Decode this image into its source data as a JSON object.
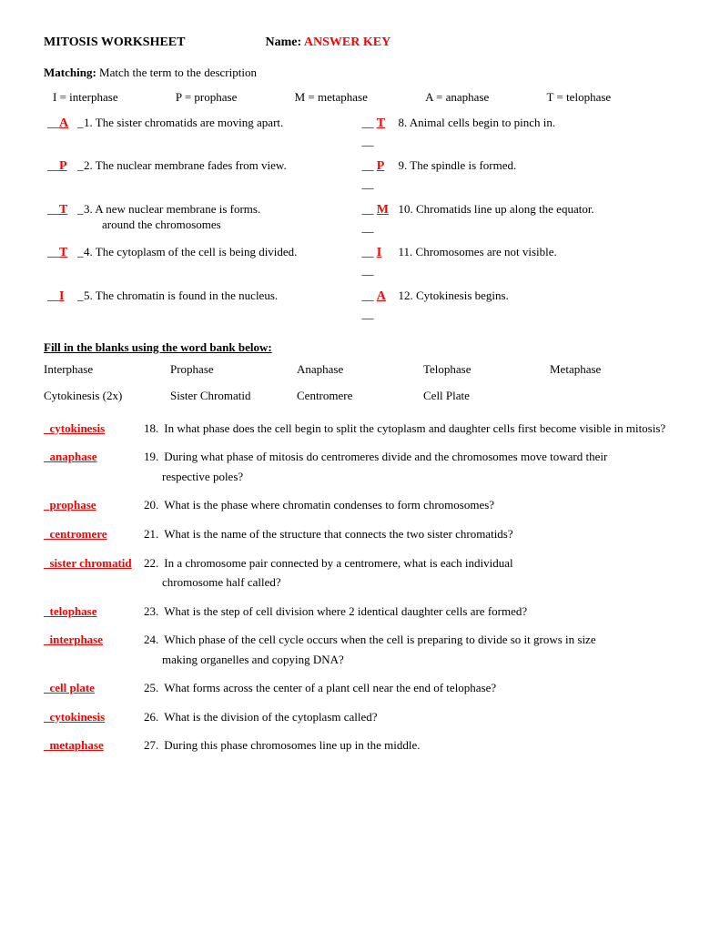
{
  "header": {
    "title": "MITOSIS WORKSHEET",
    "name_label": "Name:",
    "name_value": "ANSWER KEY"
  },
  "matching": {
    "label": "Matching:",
    "desc": "Match the term to the description",
    "legend": [
      "I = interphase",
      "P = prophase",
      "M = metaphase",
      "A = anaphase",
      "T = telophase"
    ],
    "left": [
      {
        "ans": "A",
        "num": "1.",
        "text": "The sister chromatids are moving apart."
      },
      {
        "ans": "P",
        "num": "2.",
        "text": "The nuclear membrane fades from view."
      },
      {
        "ans": "T",
        "num": "3.",
        "text": "A new nuclear membrane is forms.",
        "text2": "around the chromosomes"
      },
      {
        "ans": "T",
        "num": "4.",
        "text": "The cytoplasm of the cell is being divided."
      },
      {
        "ans": "I",
        "num": "5.",
        "text": "The chromatin is found in the nucleus."
      }
    ],
    "right": [
      {
        "ans": "T",
        "num": "8.",
        "text": "Animal cells begin to pinch in."
      },
      {
        "ans": "P",
        "num": "9.",
        "text": "The spindle is formed."
      },
      {
        "ans": "M",
        "num": "10.",
        "text": "Chromatids line up along the equator."
      },
      {
        "ans": "I",
        "num": "11.",
        "text": "Chromosomes are not visible."
      },
      {
        "ans": "A",
        "num": "12.",
        "text": "Cytokinesis begins."
      }
    ]
  },
  "fill": {
    "header": "Fill in the blanks using the word bank below:",
    "wordbank": {
      "row1": [
        "Interphase",
        "Prophase",
        "Anaphase",
        "Telophase",
        "Metaphase"
      ],
      "row2": [
        "Cytokinesis (2x)",
        "Sister Chromatid",
        "Centromere",
        "Cell Plate",
        ""
      ]
    },
    "questions": [
      {
        "ans": "cytokinesis",
        "num": "18.",
        "text": "In what phase does the cell begin to split the cytoplasm and daughter cells first become visible in mitosis?"
      },
      {
        "ans": "anaphase",
        "num": "19.",
        "text": "During what phase of mitosis do centromeres divide and the chromosomes move toward their",
        "cont": "respective poles?"
      },
      {
        "ans": "prophase",
        "num": "20.",
        "text": "What is the phase where chromatin condenses to form chromosomes?"
      },
      {
        "ans": "centromere",
        "num": "21.",
        "text": "What is the name of the structure that connects the two sister chromatids?"
      },
      {
        "ans": "sister chromatid",
        "num": "22.",
        "text": "In a chromosome pair connected by a centromere, what is each individual",
        "cont": "chromosome half called?"
      },
      {
        "ans": "telophase",
        "num": "23.",
        "text": "What is the step of cell division where 2 identical daughter cells are formed?"
      },
      {
        "ans": "interphase",
        "num": "24.",
        "text": "Which phase of the cell cycle occurs when the cell is preparing to divide so it grows in size",
        "cont": "making organelles and copying DNA?"
      },
      {
        "ans": "cell plate",
        "num": "25.",
        "text": "What forms across the center of a plant cell near the end of telophase?"
      },
      {
        "ans": "cytokinesis",
        "num": "26.",
        "text": "What is the division of the cytoplasm called?"
      },
      {
        "ans": "metaphase",
        "num": "27.",
        "text": "During this phase chromosomes line up in the middle."
      }
    ]
  }
}
